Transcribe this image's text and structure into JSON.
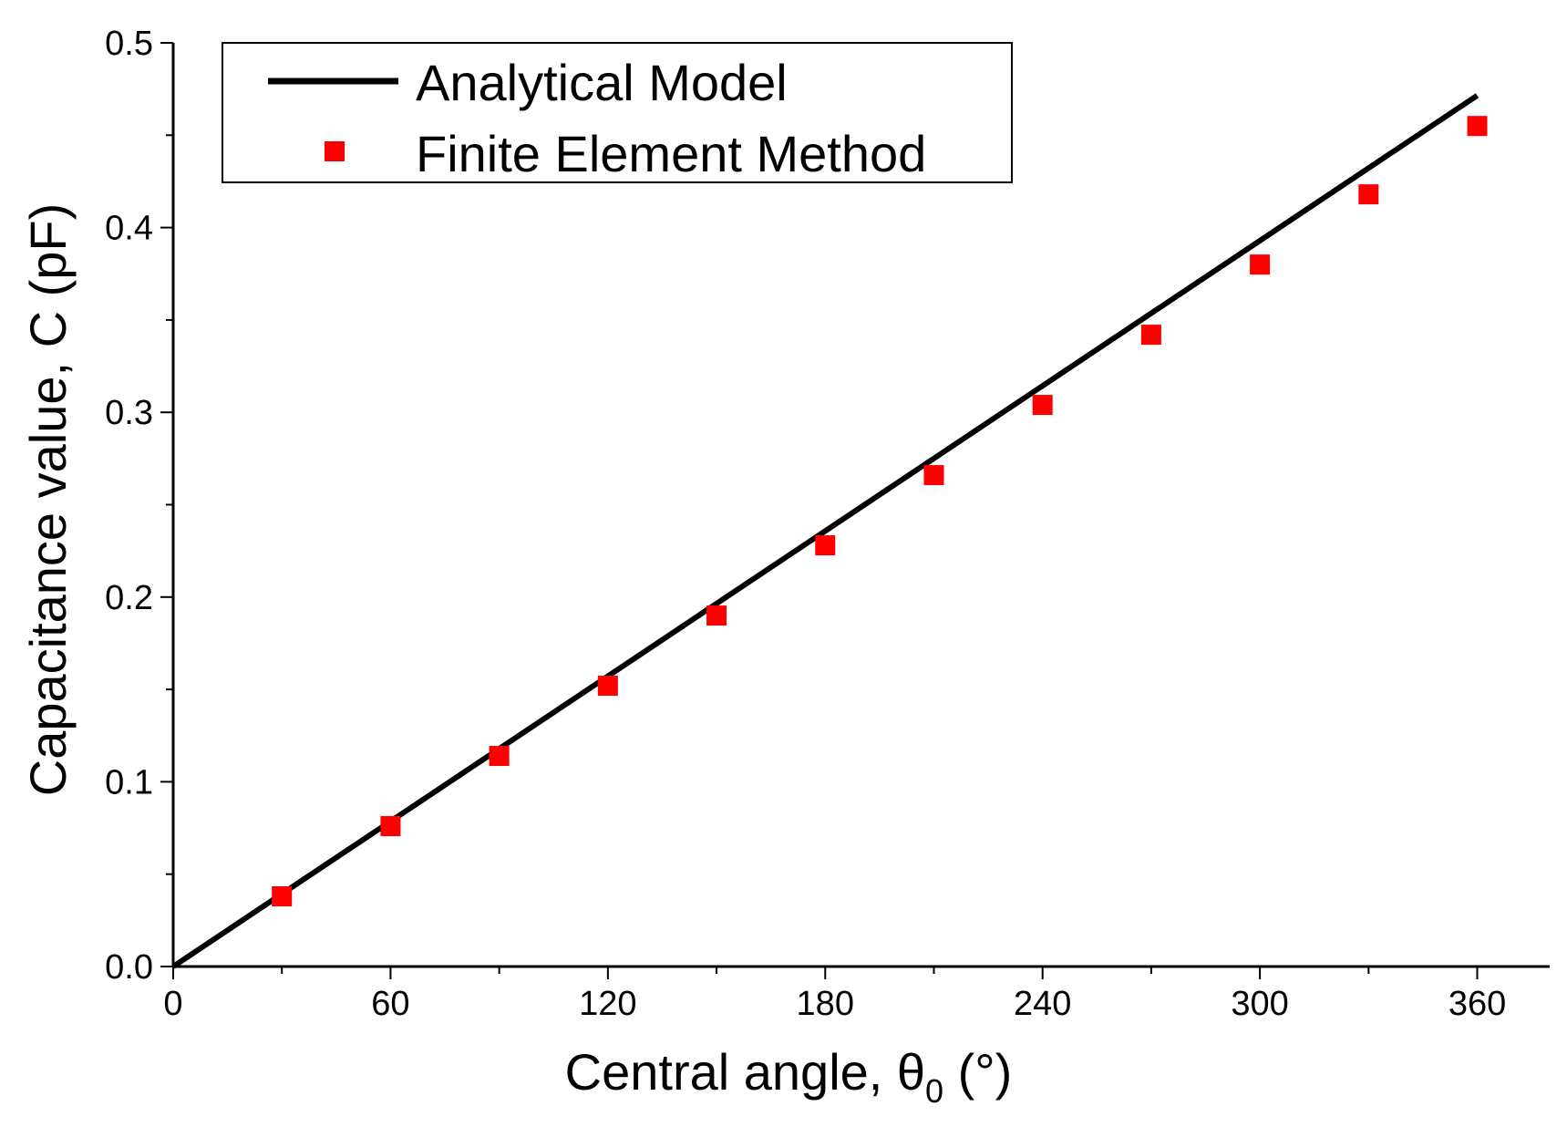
{
  "chart_data": {
    "type": "line",
    "xlabel": "Central angle,  θ",
    "xlabel_subscript": "0",
    "xlabel_suffix": " (°)",
    "ylabel": "Capacitance value, C (pF)",
    "xlim": [
      0,
      380
    ],
    "ylim": [
      0,
      0.5
    ],
    "x_ticks": [
      0,
      60,
      120,
      180,
      240,
      300,
      360
    ],
    "x_tick_labels": [
      "0",
      "60",
      "120",
      "180",
      "240",
      "300",
      "360"
    ],
    "y_ticks": [
      0.0,
      0.1,
      0.2,
      0.3,
      0.4,
      0.5
    ],
    "y_tick_labels": [
      "0.0",
      "0.1",
      "0.2",
      "0.3",
      "0.4",
      "0.5"
    ],
    "grid": false,
    "legend_position": "top-left",
    "series": [
      {
        "name": "Analytical Model",
        "kind": "line",
        "color": "#000000",
        "x": [
          0,
          360
        ],
        "y": [
          0,
          0.4715
        ]
      },
      {
        "name": "Finite Element Method",
        "kind": "scatter",
        "marker": "square",
        "color": "#ff0000",
        "x": [
          30,
          60,
          90,
          120,
          150,
          180,
          210,
          240,
          270,
          300,
          330,
          360
        ],
        "y": [
          0.038,
          0.076,
          0.114,
          0.152,
          0.19,
          0.228,
          0.266,
          0.304,
          0.342,
          0.38,
          0.418,
          0.455
        ]
      }
    ]
  }
}
